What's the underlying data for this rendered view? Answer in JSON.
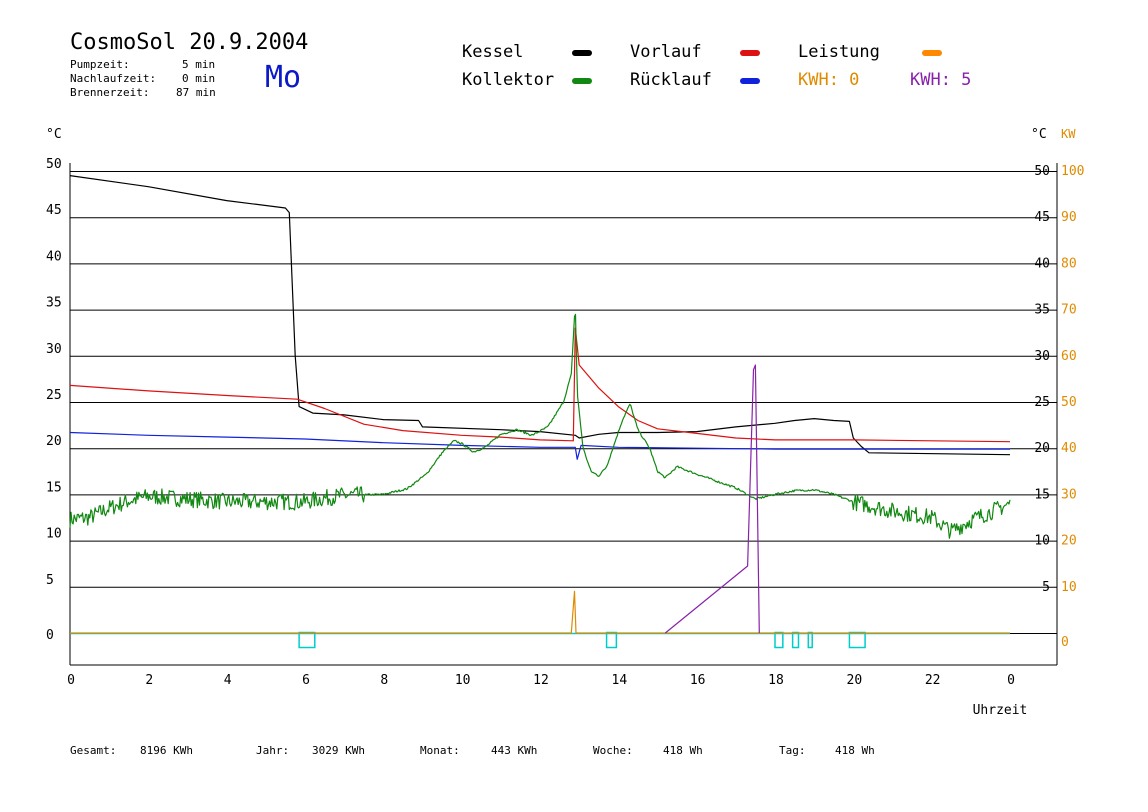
{
  "header": {
    "title": "CosmoSol 20.9.2004",
    "weekday": "Mo",
    "stats": [
      {
        "label": "Pumpzeit:",
        "value": "5 min"
      },
      {
        "label": "Nachlaufzeit:",
        "value": "0 min"
      },
      {
        "label": "Brennerzeit:",
        "value": "87 min"
      }
    ]
  },
  "legend": {
    "kessel": {
      "label": "Kessel",
      "color": "#000000"
    },
    "vorlauf": {
      "label": "Vorlauf",
      "color": "#dd1111"
    },
    "leistung": {
      "label": "Leistung",
      "color": "#ff8800"
    },
    "kollektor": {
      "label": "Kollektor",
      "color": "#118811"
    },
    "ruecklauf": {
      "label": "Rücklauf",
      "color": "#1122dd"
    },
    "kwh_orange": {
      "text": "KWH: 0",
      "color": "#e08a00"
    },
    "kwh_purple": {
      "text": "KWH: 5",
      "color": "#8822aa"
    }
  },
  "footer": [
    {
      "label": "Gesamt:",
      "value": "8196 KWh"
    },
    {
      "label": "Jahr:",
      "value": "3029 KWh"
    },
    {
      "label": "Monat:",
      "value": "443 KWh"
    },
    {
      "label": "Woche:",
      "value": "418 Wh"
    },
    {
      "label": "Tag:",
      "value": "418 Wh"
    }
  ],
  "chart_data": {
    "type": "line",
    "xlabel": "Uhrzeit",
    "ylabel_left": "°C",
    "ylabel_right": "°C",
    "ylabel_right2": "KW",
    "xlim": [
      0,
      24
    ],
    "ylim": [
      -3.5,
      51
    ],
    "ylim_kw": [
      0,
      100
    ],
    "grid": true,
    "x_ticks": [
      "0",
      "2",
      "4",
      "6",
      "8",
      "10",
      "12",
      "14",
      "16",
      "18",
      "20",
      "22",
      "0"
    ],
    "y_ticks_left": [
      "0",
      "5",
      "10",
      "15",
      "20",
      "25",
      "30",
      "35",
      "40",
      "45",
      "50"
    ],
    "y_ticks_right": [
      "5",
      "10",
      "15",
      "20",
      "25",
      "30",
      "35",
      "40",
      "45",
      "50"
    ],
    "y_ticks_kw": [
      "0",
      "10",
      "20",
      "30",
      "40",
      "50",
      "60",
      "70",
      "80",
      "90",
      "100"
    ],
    "series": [
      {
        "name": "Kessel",
        "color": "#000000",
        "points": [
          [
            0,
            49.5
          ],
          [
            2,
            48.3
          ],
          [
            4,
            46.8
          ],
          [
            5.5,
            46
          ],
          [
            5.6,
            45.5
          ],
          [
            5.75,
            30
          ],
          [
            5.85,
            24.5
          ],
          [
            6.2,
            23.8
          ],
          [
            7,
            23.6
          ],
          [
            8,
            23.1
          ],
          [
            8.9,
            23
          ],
          [
            9,
            22.3
          ],
          [
            11,
            22
          ],
          [
            12,
            21.8
          ],
          [
            12.9,
            21.4
          ],
          [
            13,
            21.1
          ],
          [
            13.5,
            21.5
          ],
          [
            14,
            21.7
          ],
          [
            15,
            21.7
          ],
          [
            16,
            21.8
          ],
          [
            17,
            22.3
          ],
          [
            18,
            22.7
          ],
          [
            18.5,
            23
          ],
          [
            19,
            23.2
          ],
          [
            19.5,
            23
          ],
          [
            19.9,
            22.9
          ],
          [
            20,
            21.1
          ],
          [
            20.2,
            20.2
          ],
          [
            20.4,
            19.5
          ],
          [
            24,
            19.3
          ]
        ]
      },
      {
        "name": "Vorlauf",
        "color": "#dd1111",
        "points": [
          [
            0,
            26.8
          ],
          [
            2,
            26.2
          ],
          [
            4,
            25.7
          ],
          [
            5.8,
            25.3
          ],
          [
            6.5,
            24.3
          ],
          [
            7.5,
            22.6
          ],
          [
            8.5,
            21.9
          ],
          [
            10,
            21.4
          ],
          [
            11,
            21.2
          ],
          [
            12,
            20.9
          ],
          [
            12.85,
            20.8
          ],
          [
            12.9,
            33
          ],
          [
            13,
            29
          ],
          [
            13.5,
            26.5
          ],
          [
            14,
            24.5
          ],
          [
            14.5,
            23
          ],
          [
            15,
            22.1
          ],
          [
            16,
            21.6
          ],
          [
            17,
            21.1
          ],
          [
            18,
            20.9
          ],
          [
            19,
            20.9
          ],
          [
            20,
            20.9
          ],
          [
            22,
            20.8
          ],
          [
            24,
            20.7
          ]
        ]
      },
      {
        "name": "Rücklauf",
        "color": "#1122dd",
        "points": [
          [
            0,
            21.7
          ],
          [
            2,
            21.4
          ],
          [
            4,
            21.2
          ],
          [
            6,
            21
          ],
          [
            8,
            20.6
          ],
          [
            10,
            20.3
          ],
          [
            12,
            20.1
          ],
          [
            12.9,
            20.1
          ],
          [
            12.95,
            18.8
          ],
          [
            13.05,
            20.3
          ],
          [
            14,
            20.1
          ],
          [
            16,
            20
          ],
          [
            18,
            19.9
          ],
          [
            20,
            19.9
          ],
          [
            22,
            19.9
          ],
          [
            24,
            19.9
          ]
        ]
      },
      {
        "name": "Kollektor",
        "color": "#118811",
        "noise": 0.9,
        "points": [
          [
            0,
            12.3
          ],
          [
            0.5,
            12.5
          ],
          [
            1,
            13.5
          ],
          [
            1.5,
            14.3
          ],
          [
            2,
            14.8
          ],
          [
            3,
            14.5
          ],
          [
            4,
            14.2
          ],
          [
            5,
            14.2
          ],
          [
            6,
            14.2
          ],
          [
            6.5,
            14.6
          ],
          [
            7,
            14.9
          ],
          [
            8,
            15
          ],
          [
            8.6,
            15.6
          ],
          [
            9.1,
            17.2
          ],
          [
            9.5,
            19.5
          ],
          [
            9.8,
            20.8
          ],
          [
            10,
            20.5
          ],
          [
            10.3,
            19.6
          ],
          [
            10.6,
            20.1
          ],
          [
            11,
            21.5
          ],
          [
            11.4,
            22
          ],
          [
            11.8,
            21.4
          ],
          [
            12.2,
            22.3
          ],
          [
            12.6,
            25
          ],
          [
            12.8,
            28
          ],
          [
            12.9,
            35.8
          ],
          [
            12.95,
            26
          ],
          [
            13.1,
            20
          ],
          [
            13.3,
            17.5
          ],
          [
            13.5,
            17
          ],
          [
            13.7,
            18
          ],
          [
            13.9,
            20.5
          ],
          [
            14.1,
            23
          ],
          [
            14.3,
            24.8
          ],
          [
            14.5,
            22
          ],
          [
            14.8,
            20
          ],
          [
            15,
            17.5
          ],
          [
            15.2,
            16.8
          ],
          [
            15.5,
            18
          ],
          [
            16,
            17.2
          ],
          [
            17,
            15.7
          ],
          [
            17.5,
            14.5
          ],
          [
            18,
            15
          ],
          [
            18.5,
            15.4
          ],
          [
            19,
            15.5
          ],
          [
            19.5,
            15
          ],
          [
            20,
            14.2
          ],
          [
            21,
            13.2
          ],
          [
            22,
            12.5
          ],
          [
            22.5,
            11
          ],
          [
            23,
            12.2
          ],
          [
            24,
            14
          ]
        ]
      },
      {
        "name": "Leistung",
        "color": "#e08a00",
        "points": [
          [
            0,
            0
          ],
          [
            12.8,
            0
          ],
          [
            12.88,
            9
          ],
          [
            12.92,
            0
          ],
          [
            24,
            0
          ]
        ]
      },
      {
        "name": "KWH",
        "color": "#8822aa",
        "points": [
          [
            15.2,
            0
          ],
          [
            17.3,
            14.5
          ],
          [
            17.45,
            57
          ],
          [
            17.5,
            58
          ],
          [
            17.6,
            0
          ]
        ]
      }
    ],
    "pump_on": [
      [
        5.85,
        6.25
      ],
      [
        13.7,
        13.95
      ],
      [
        18,
        18.2
      ],
      [
        18.45,
        18.6
      ],
      [
        18.85,
        18.95
      ],
      [
        19.9,
        20.3
      ]
    ]
  }
}
